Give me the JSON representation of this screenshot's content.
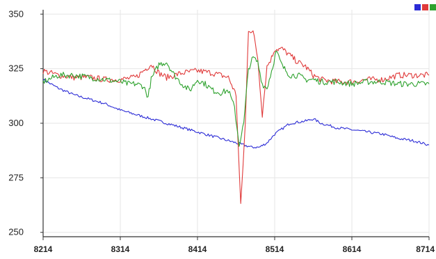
{
  "chart_data": {
    "type": "line",
    "x_ticks": [
      8214,
      8314,
      8414,
      8514,
      8614,
      8714
    ],
    "y_ticks": [
      250,
      275,
      300,
      325,
      350
    ],
    "xlim": [
      8214,
      8714
    ],
    "ylim": [
      248,
      352
    ],
    "grid": true,
    "legend": "top-right",
    "series": [
      {
        "color": "#2b2bd6",
        "x": [
          8214,
          8234,
          8254,
          8274,
          8294,
          8314,
          8334,
          8354,
          8374,
          8394,
          8414,
          8434,
          8454,
          8464,
          8474,
          8484,
          8494,
          8504,
          8514,
          8534,
          8554,
          8564,
          8574,
          8594,
          8614,
          8634,
          8654,
          8674,
          8694,
          8714
        ],
        "values": [
          320,
          316,
          313,
          311,
          309,
          306,
          304,
          302,
          300,
          298,
          296,
          294,
          292,
          291,
          290,
          289,
          289,
          291,
          295,
          300,
          301,
          302,
          300,
          298,
          297,
          296,
          295,
          293,
          292,
          290
        ]
      },
      {
        "color": "#e03a3a",
        "x": [
          8214,
          8234,
          8254,
          8274,
          8294,
          8314,
          8334,
          8344,
          8354,
          8364,
          8374,
          8394,
          8414,
          8434,
          8454,
          8464,
          8470,
          8476,
          8480,
          8486,
          8492,
          8498,
          8504,
          8510,
          8514,
          8524,
          8534,
          8544,
          8554,
          8564,
          8574,
          8594,
          8614,
          8634,
          8654,
          8674,
          8694,
          8714
        ],
        "values": [
          324,
          322,
          321,
          321,
          320,
          320,
          321,
          324,
          327,
          323,
          321,
          323,
          324,
          323,
          321,
          313,
          262,
          300,
          343,
          342,
          330,
          304,
          326,
          330,
          334,
          334,
          331,
          328,
          326,
          322,
          320,
          319,
          319,
          320,
          320,
          322,
          322,
          322
        ]
      },
      {
        "color": "#2ea22e",
        "x": [
          8214,
          8234,
          8254,
          8274,
          8294,
          8314,
          8324,
          8334,
          8344,
          8350,
          8354,
          8364,
          8374,
          8384,
          8394,
          8404,
          8414,
          8424,
          8434,
          8444,
          8454,
          8462,
          8468,
          8474,
          8480,
          8486,
          8492,
          8498,
          8504,
          8510,
          8516,
          8524,
          8534,
          8544,
          8554,
          8564,
          8574,
          8594,
          8614,
          8634,
          8654,
          8674,
          8694,
          8714
        ],
        "values": [
          319,
          322,
          322,
          321,
          320,
          319,
          318,
          318,
          317,
          312,
          320,
          327,
          328,
          322,
          318,
          315,
          320,
          318,
          315,
          314,
          315,
          307,
          290,
          300,
          325,
          330,
          328,
          318,
          316,
          324,
          333,
          326,
          322,
          322,
          320,
          320,
          319,
          319,
          318,
          319,
          319,
          318,
          318,
          318
        ]
      }
    ]
  }
}
